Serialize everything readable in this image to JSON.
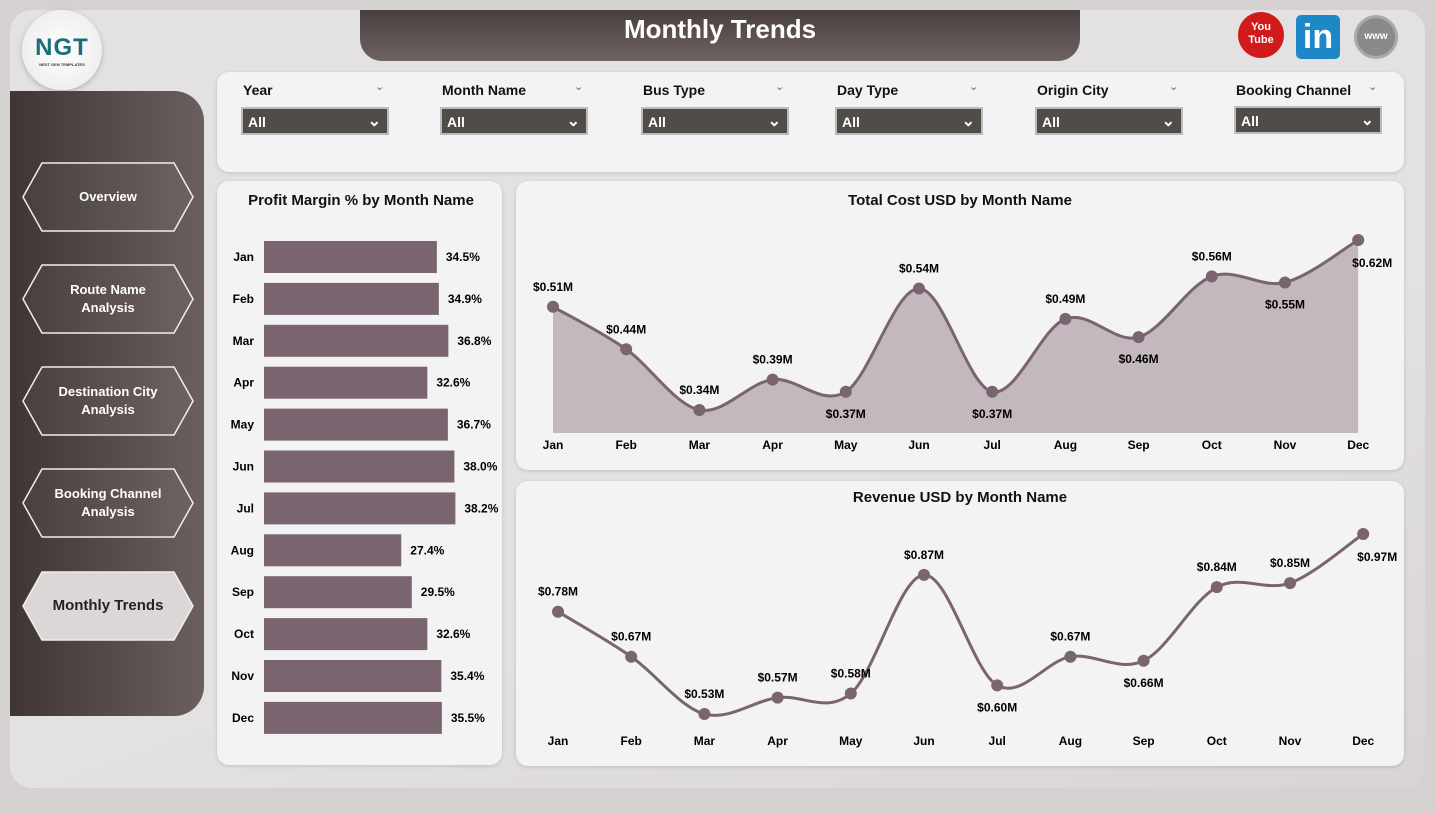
{
  "header": {
    "title": "Monthly Trends",
    "logo_text": "NGT",
    "logo_sub": "NEXT GEN TEMPLATES"
  },
  "social": [
    {
      "icon": "youtube-icon",
      "label": "You Tube",
      "color": "#d11a1a"
    },
    {
      "icon": "linkedin-icon",
      "label": "in",
      "color": "#1e88c7"
    },
    {
      "icon": "website-globe-icon",
      "label": "www",
      "color": "#8a8a8a"
    }
  ],
  "sidebar": {
    "items": [
      {
        "label": "Overview",
        "active": false
      },
      {
        "label": "Route Name Analysis",
        "active": false
      },
      {
        "label": "Destination City Analysis",
        "active": false
      },
      {
        "label": "Booking Channel Analysis",
        "active": false
      },
      {
        "label": "Monthly Trends",
        "active": true
      }
    ]
  },
  "filters": [
    {
      "label": "Year",
      "value": "All"
    },
    {
      "label": "Month Name",
      "value": "All"
    },
    {
      "label": "Bus Type",
      "value": "All"
    },
    {
      "label": "Day Type",
      "value": "All"
    },
    {
      "label": "Origin City",
      "value": "All"
    },
    {
      "label": "Booking Channel",
      "value": "All"
    }
  ],
  "colors": {
    "bar": "#7a6470",
    "line": "#7a6470",
    "area": "#c2b8bd"
  },
  "chart_data": [
    {
      "type": "bar",
      "orientation": "horizontal",
      "title": "Profit Margin % by Month Name",
      "categories": [
        "Jan",
        "Feb",
        "Mar",
        "Apr",
        "May",
        "Jun",
        "Jul",
        "Aug",
        "Sep",
        "Oct",
        "Nov",
        "Dec"
      ],
      "values": [
        34.5,
        34.9,
        36.8,
        32.6,
        36.7,
        38.0,
        38.2,
        27.4,
        29.5,
        32.6,
        35.4,
        35.5
      ],
      "labels": [
        "34.5%",
        "34.9%",
        "36.8%",
        "32.6%",
        "36.7%",
        "38.0%",
        "38.2%",
        "27.4%",
        "29.5%",
        "32.6%",
        "35.4%",
        "35.5%"
      ]
    },
    {
      "type": "area",
      "title": "Total Cost USD by Month Name",
      "categories": [
        "Jan",
        "Feb",
        "Mar",
        "Apr",
        "May",
        "Jun",
        "Jul",
        "Aug",
        "Sep",
        "Oct",
        "Nov",
        "Dec"
      ],
      "values": [
        0.51,
        0.44,
        0.34,
        0.39,
        0.37,
        0.54,
        0.37,
        0.49,
        0.46,
        0.56,
        0.55,
        0.62
      ],
      "labels": [
        "$0.51M",
        "$0.44M",
        "$0.34M",
        "$0.39M",
        "$0.37M",
        "$0.54M",
        "$0.37M",
        "$0.49M",
        "$0.46M",
        "$0.56M",
        "$0.55M",
        "$0.62M"
      ]
    },
    {
      "type": "line",
      "title": "Revenue USD by Month Name",
      "categories": [
        "Jan",
        "Feb",
        "Mar",
        "Apr",
        "May",
        "Jun",
        "Jul",
        "Aug",
        "Sep",
        "Oct",
        "Nov",
        "Dec"
      ],
      "values": [
        0.78,
        0.67,
        0.53,
        0.57,
        0.58,
        0.87,
        0.6,
        0.67,
        0.66,
        0.84,
        0.85,
        0.97
      ],
      "labels": [
        "$0.78M",
        "$0.67M",
        "$0.53M",
        "$0.57M",
        "$0.58M",
        "$0.87M",
        "$0.60M",
        "$0.67M",
        "$0.66M",
        "$0.84M",
        "$0.85M",
        "$0.97M"
      ]
    }
  ]
}
